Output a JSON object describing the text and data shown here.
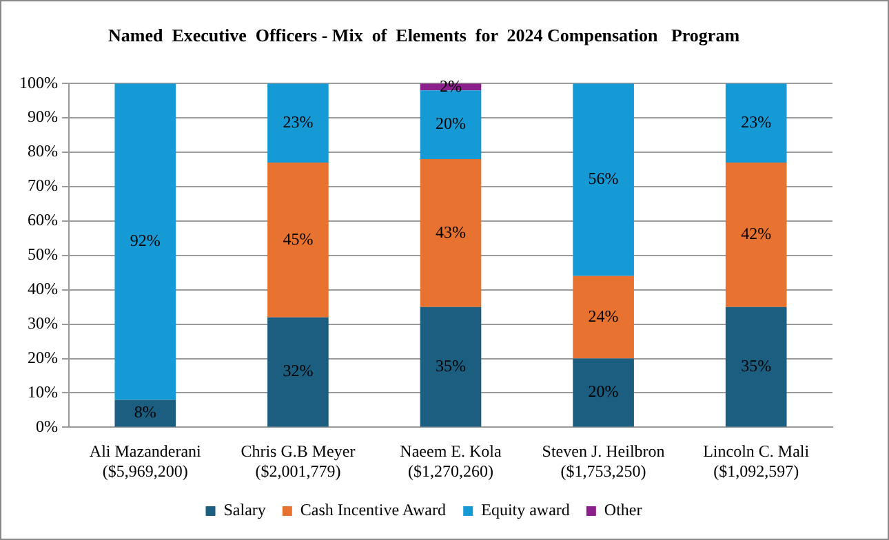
{
  "chart_data": {
    "type": "bar",
    "title": "Named  Executive  Officers - Mix  of  Elements  for  2024 Compensation   Program",
    "categories": [
      "Ali Mazanderani\n($5,969,200)",
      "Chris G.B Meyer\n($2,001,779)",
      "Naeem E. Kola\n($1,270,260)",
      "Steven J. Heilbron\n($1,753,250)",
      "Lincoln C. Mali\n($1,092,597)"
    ],
    "series": [
      {
        "name": "Salary",
        "color": "#1b5e80",
        "values": [
          8,
          32,
          35,
          20,
          35
        ],
        "value_labels": [
          "8%",
          "32%",
          "35%",
          "20%",
          "35%"
        ]
      },
      {
        "name": "Cash Incentive Award",
        "color": "#e8722f",
        "values": [
          0,
          45,
          43,
          24,
          42
        ],
        "value_labels": [
          null,
          "45%",
          "43%",
          "24%",
          "42%"
        ]
      },
      {
        "name": "Equity award",
        "color": "#169ad6",
        "values": [
          92,
          23,
          20,
          56,
          23
        ],
        "value_labels": [
          "92%",
          "23%",
          "20%",
          "56%",
          "23%"
        ]
      },
      {
        "name": "Other",
        "color": "#8b1f8c",
        "values": [
          0,
          0,
          2,
          0,
          0
        ],
        "value_labels": [
          null,
          null,
          "2%",
          null,
          null
        ]
      }
    ],
    "stacked": true,
    "ylim": [
      0,
      100
    ],
    "yticks": [
      {
        "value": 0,
        "label": "0%"
      },
      {
        "value": 10,
        "label": "10%"
      },
      {
        "value": 20,
        "label": "20%"
      },
      {
        "value": 30,
        "label": "30%"
      },
      {
        "value": 40,
        "label": "40%"
      },
      {
        "value": 50,
        "label": "50%"
      },
      {
        "value": 60,
        "label": "60%"
      },
      {
        "value": 70,
        "label": "70%"
      },
      {
        "value": 80,
        "label": "80%"
      },
      {
        "value": 90,
        "label": "90%"
      },
      {
        "value": 100,
        "label": "100%"
      }
    ],
    "grid": "y",
    "legend": "bottom"
  }
}
